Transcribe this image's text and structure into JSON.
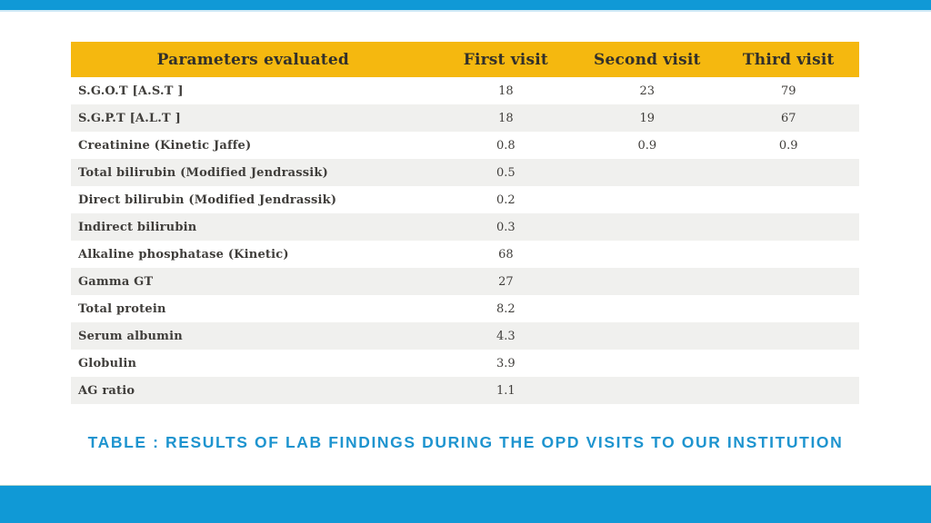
{
  "theme": {
    "bar_blue": "#1099D6",
    "bar_blue_underline": "#CFE9F6",
    "header_yellow": "#F5B80F",
    "header_text": "#32302B",
    "row_stripe_gray": "#F0F0EE",
    "caption_blue": "#1E94CF",
    "background": "#FFFFFF"
  },
  "table": {
    "columns": [
      "Parameters evaluated",
      "First visit",
      "Second visit",
      "Third visit"
    ],
    "rows": [
      {
        "parameter": "S.G.O.T [A.S.T ]",
        "first": "18",
        "second": "23",
        "third": "79"
      },
      {
        "parameter": "S.G.P.T [A.L.T ]",
        "first": "18",
        "second": "19",
        "third": "67"
      },
      {
        "parameter": "Creatinine (Kinetic Jaffe)",
        "first": "0.8",
        "second": "0.9",
        "third": "0.9"
      },
      {
        "parameter": "Total bilirubin (Modified Jendrassik)",
        "first": "0.5",
        "second": "",
        "third": ""
      },
      {
        "parameter": "Direct bilirubin (Modified Jendrassik)",
        "first": "0.2",
        "second": "",
        "third": ""
      },
      {
        "parameter": "Indirect bilirubin",
        "first": "0.3",
        "second": "",
        "third": ""
      },
      {
        "parameter": "Alkaline phosphatase (Kinetic)",
        "first": "68",
        "second": "",
        "third": ""
      },
      {
        "parameter": "Gamma GT",
        "first": "27",
        "second": "",
        "third": ""
      },
      {
        "parameter": "Total protein",
        "first": "8.2",
        "second": "",
        "third": ""
      },
      {
        "parameter": "Serum albumin",
        "first": "4.3",
        "second": "",
        "third": ""
      },
      {
        "parameter": "Globulin",
        "first": "3.9",
        "second": "",
        "third": ""
      },
      {
        "parameter": "AG ratio",
        "first": "1.1",
        "second": "",
        "third": ""
      }
    ]
  },
  "caption": "TABLE : RESULTS OF LAB FINDINGS DURING THE OPD VISITS TO OUR INSTITUTION",
  "chart_data": {
    "type": "table",
    "title": "TABLE : RESULTS OF LAB FINDINGS DURING THE OPD VISITS TO OUR INSTITUTION",
    "categories": [
      "S.G.O.T [A.S.T ]",
      "S.G.P.T [A.L.T ]",
      "Creatinine (Kinetic Jaffe)",
      "Total bilirubin (Modified Jendrassik)",
      "Direct bilirubin (Modified Jendrassik)",
      "Indirect bilirubin",
      "Alkaline phosphatase (Kinetic)",
      "Gamma GT",
      "Total protein",
      "Serum albumin",
      "Globulin",
      "AG ratio"
    ],
    "series": [
      {
        "name": "First visit",
        "values": [
          18,
          18,
          0.8,
          0.5,
          0.2,
          0.3,
          68,
          27,
          8.2,
          4.3,
          3.9,
          1.1
        ]
      },
      {
        "name": "Second visit",
        "values": [
          23,
          19,
          0.9,
          null,
          null,
          null,
          null,
          null,
          null,
          null,
          null,
          null
        ]
      },
      {
        "name": "Third visit",
        "values": [
          79,
          67,
          0.9,
          null,
          null,
          null,
          null,
          null,
          null,
          null,
          null,
          null
        ]
      }
    ]
  }
}
